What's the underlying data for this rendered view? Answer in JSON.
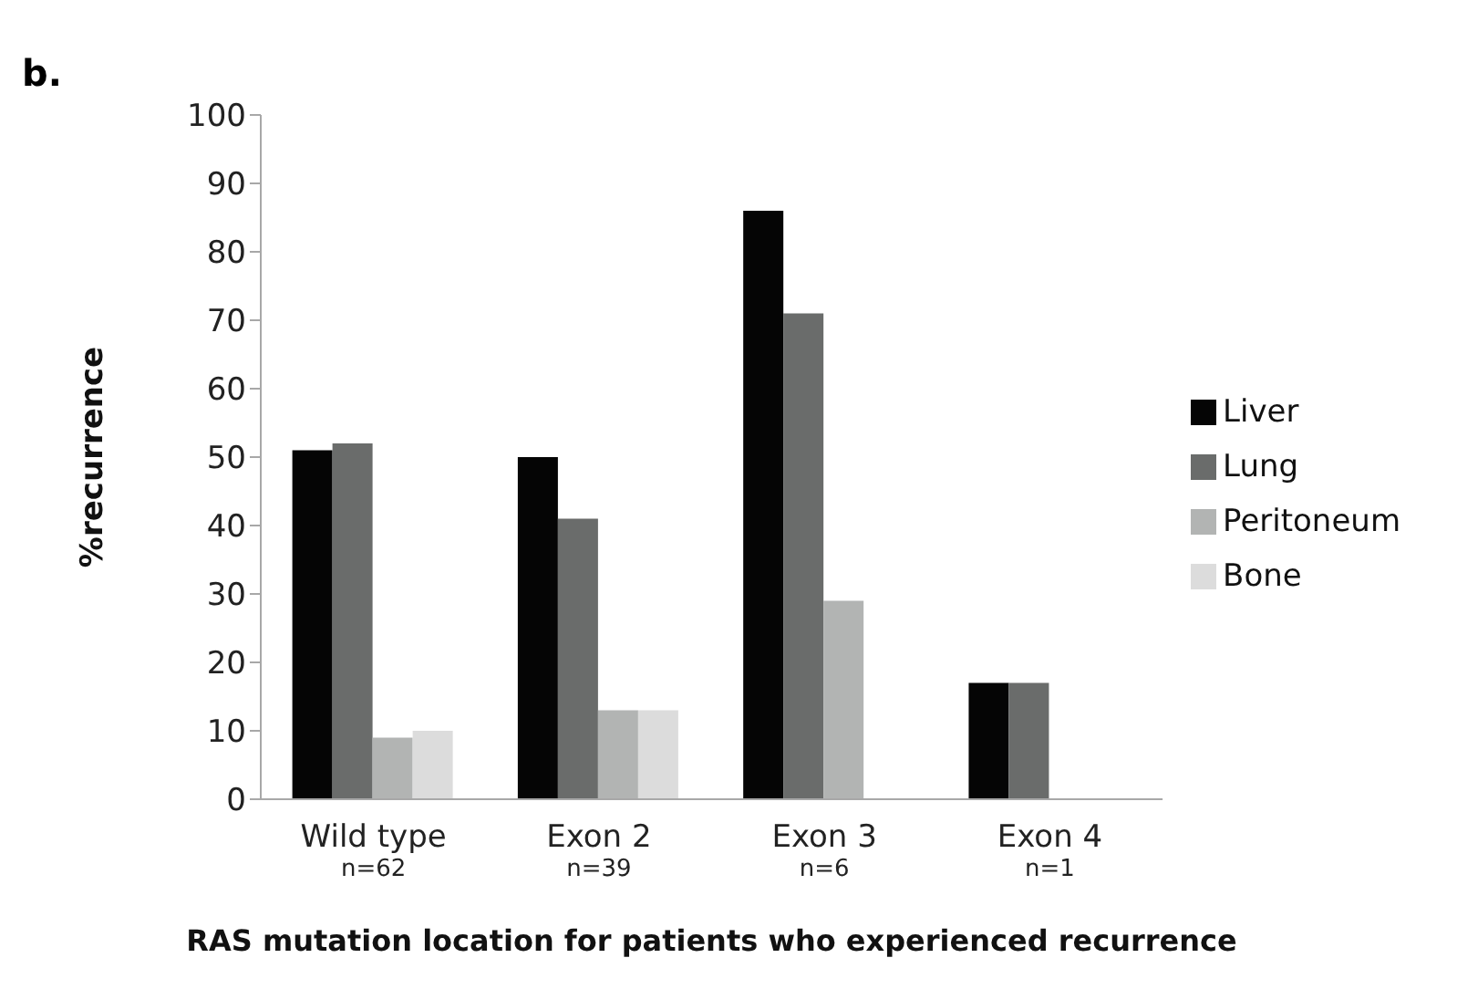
{
  "chart_data": {
    "type": "bar",
    "annotations": [
      "b."
    ],
    "xlabel": "RAS mutation location for patients who experienced recurrence",
    "ylabel": "%recurrence",
    "categories": [
      "Wild type\nn=62",
      "Exon 2\nn=39",
      "Exon 3\nn=6",
      "Exon 4\nn=1"
    ],
    "series": [
      {
        "name": "Liver",
        "color": "#050505",
        "values": [
          51,
          50,
          86,
          17
        ]
      },
      {
        "name": "Lung",
        "color": "#6a6c6b",
        "values": [
          52,
          41,
          71,
          17
        ]
      },
      {
        "name": "Peritoneum",
        "color": "#b2b4b3",
        "values": [
          9,
          13,
          29,
          0
        ]
      },
      {
        "name": "Bone",
        "color": "#dcdcdc",
        "values": [
          10,
          13,
          0,
          0
        ]
      }
    ],
    "ylim": [
      0,
      100
    ],
    "yticks": [
      0,
      10,
      20,
      30,
      40,
      50,
      60,
      70,
      80,
      90,
      100
    ],
    "grid": false,
    "legend": "right"
  }
}
